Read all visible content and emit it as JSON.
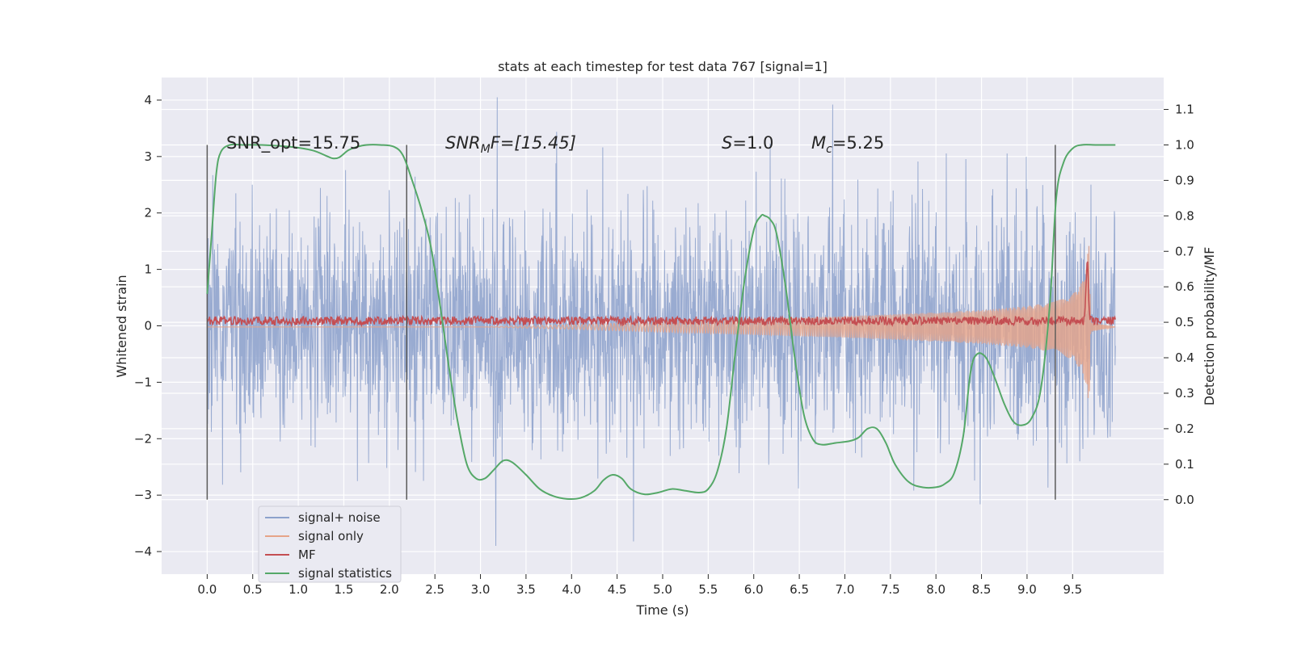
{
  "chart_data": {
    "type": "line",
    "title": "stats at each timestep for test data 767 [signal=1]",
    "xlabel": "Time (s)",
    "ylabel": "Whitened strain",
    "y2label": "Detection probability/MF",
    "xlim": [
      -0.5,
      10.5
    ],
    "ylim": [
      -4.4,
      4.4
    ],
    "y2lim": [
      -0.21,
      1.19
    ],
    "x_ticks": [
      "0.0",
      "0.5",
      "1.0",
      "1.5",
      "2.0",
      "2.5",
      "3.0",
      "3.5",
      "4.0",
      "4.5",
      "5.0",
      "5.5",
      "6.0",
      "6.5",
      "7.0",
      "7.5",
      "8.0",
      "8.5",
      "9.0",
      "9.5"
    ],
    "y_ticks": [
      "4",
      "3",
      "2",
      "1",
      "0",
      "−1",
      "−2",
      "−3",
      "−4"
    ],
    "y2_ticks": [
      "1.1",
      "1.0",
      "0.9",
      "0.8",
      "0.7",
      "0.6",
      "0.5",
      "0.4",
      "0.3",
      "0.2",
      "0.1",
      "0.0"
    ],
    "grid": true,
    "legend_position": "lower-left",
    "annotations": {
      "snr_opt": "SNR_opt=15.75",
      "snr_mf_base": "SNR",
      "snr_mf_sub": "M",
      "snr_mf_rest": "F=[15.45]",
      "s_base": "S",
      "s_rest": "=1.0",
      "mc_base": "M",
      "mc_sub": "c",
      "mc_rest": "=5.25"
    },
    "vertical_lines_x": [
      0.0,
      2.19,
      9.31
    ],
    "series": [
      {
        "name": "signal+ noise",
        "color": "#8da2cc",
        "axis": "left",
        "description_values": {
          "x_start": 0.0,
          "x_end": 9.97,
          "typical_range": [
            -2.5,
            2.5
          ],
          "max": 4.05,
          "min": -3.9
        }
      },
      {
        "name": "signal only",
        "color": "#e6a488",
        "axis": "left",
        "envelope": {
          "x": [
            0.0,
            3.0,
            4.0,
            5.0,
            6.0,
            7.0,
            8.0,
            8.5,
            9.0,
            9.3,
            9.5,
            9.6,
            9.65,
            9.68,
            9.7,
            9.97
          ],
          "amplitude": [
            0.0,
            0.0,
            0.04,
            0.09,
            0.14,
            0.19,
            0.26,
            0.3,
            0.37,
            0.45,
            0.58,
            0.78,
            1.05,
            1.55,
            0.08,
            0.0
          ]
        }
      },
      {
        "name": "MF",
        "color": "#c44e52",
        "axis": "right",
        "baseline": 0.503,
        "noise_amplitude": 0.012,
        "peak": {
          "x": 9.66,
          "value": 0.67
        }
      },
      {
        "name": "signal statistics",
        "color": "#55a868",
        "axis": "right",
        "x": [
          0.0,
          0.05,
          0.1,
          0.15,
          0.25,
          0.4,
          0.6,
          0.9,
          1.15,
          1.3,
          1.38,
          1.45,
          1.55,
          1.65,
          1.75,
          1.9,
          2.05,
          2.15,
          2.25,
          2.35,
          2.45,
          2.55,
          2.65,
          2.75,
          2.85,
          2.95,
          3.05,
          3.15,
          3.25,
          3.35,
          3.5,
          3.65,
          3.8,
          3.95,
          4.1,
          4.25,
          4.35,
          4.45,
          4.55,
          4.65,
          4.8,
          4.95,
          5.1,
          5.25,
          5.4,
          5.5,
          5.6,
          5.7,
          5.8,
          5.9,
          6.0,
          6.08,
          6.12,
          6.18,
          6.25,
          6.35,
          6.45,
          6.55,
          6.65,
          6.75,
          6.9,
          7.05,
          7.15,
          7.25,
          7.35,
          7.45,
          7.55,
          7.7,
          7.85,
          8.0,
          8.1,
          8.2,
          8.3,
          8.38,
          8.45,
          8.55,
          8.65,
          8.75,
          8.85,
          8.95,
          9.05,
          9.15,
          9.25,
          9.32,
          9.4,
          9.5,
          9.6,
          9.75,
          9.9,
          9.97
        ],
        "y": [
          0.58,
          0.75,
          0.92,
          0.98,
          1.0,
          1.0,
          1.0,
          0.995,
          0.985,
          0.97,
          0.962,
          0.965,
          0.985,
          0.995,
          1.0,
          1.0,
          0.995,
          0.97,
          0.9,
          0.82,
          0.72,
          0.56,
          0.38,
          0.22,
          0.1,
          0.06,
          0.06,
          0.085,
          0.11,
          0.105,
          0.07,
          0.03,
          0.01,
          0.002,
          0.005,
          0.025,
          0.055,
          0.07,
          0.06,
          0.03,
          0.015,
          0.02,
          0.03,
          0.025,
          0.02,
          0.03,
          0.08,
          0.2,
          0.42,
          0.62,
          0.76,
          0.8,
          0.8,
          0.79,
          0.75,
          0.6,
          0.4,
          0.24,
          0.17,
          0.155,
          0.16,
          0.165,
          0.175,
          0.2,
          0.2,
          0.16,
          0.1,
          0.05,
          0.035,
          0.035,
          0.045,
          0.075,
          0.18,
          0.36,
          0.41,
          0.4,
          0.34,
          0.27,
          0.22,
          0.21,
          0.23,
          0.31,
          0.55,
          0.85,
          0.95,
          0.99,
          1.0,
          1.0,
          1.0,
          1.0
        ]
      }
    ]
  }
}
